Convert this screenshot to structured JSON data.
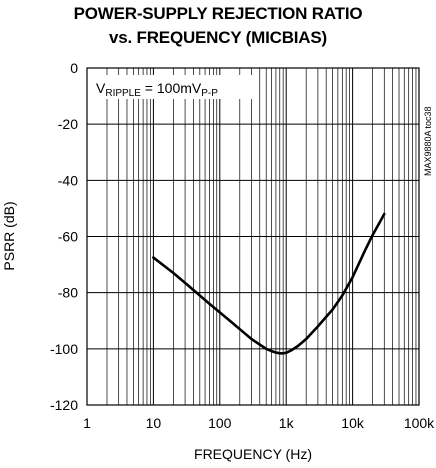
{
  "chart_data": {
    "type": "line",
    "title_lines": [
      "POWER-SUPPLY REJECTION RATIO",
      "vs. FREQUENCY (MICBIAS)"
    ],
    "xlabel": "FREQUENCY (Hz)",
    "ylabel": "PSRR (dB)",
    "x_scale": "log",
    "xlim": [
      1,
      100000
    ],
    "ylim": [
      -120,
      0
    ],
    "x_ticks": [
      1,
      10,
      100,
      1000,
      10000,
      100000
    ],
    "x_tick_labels": [
      "1",
      "10",
      "100",
      "1k",
      "10k",
      "100k"
    ],
    "y_ticks": [
      0,
      -20,
      -40,
      -60,
      -80,
      -100,
      -120
    ],
    "y_tick_labels": [
      "0",
      "-20",
      "-40",
      "-60",
      "-80",
      "-100",
      "-120"
    ],
    "grid": true,
    "annotation": {
      "base": "V",
      "sub1": "RIPPLE",
      "middle": " = 100mV",
      "sub2": "P-P"
    },
    "side_note": "MAX9880A toc38",
    "series": [
      {
        "x": [
          10,
          20,
          30,
          50,
          70,
          100,
          150,
          200,
          300,
          400,
          500,
          600,
          700,
          800,
          900,
          1000,
          1200,
          1500,
          2000,
          3000,
          5000,
          7000,
          10000,
          15000,
          20000,
          30000
        ],
        "y": [
          -67.5,
          -73,
          -76.5,
          -81,
          -84,
          -87,
          -90.5,
          -93,
          -96.5,
          -98.5,
          -100,
          -100.8,
          -101.3,
          -101.6,
          -101.6,
          -101.4,
          -100.5,
          -99,
          -96.5,
          -92,
          -86,
          -81,
          -74.5,
          -65.5,
          -59.5,
          -52
        ]
      }
    ]
  }
}
